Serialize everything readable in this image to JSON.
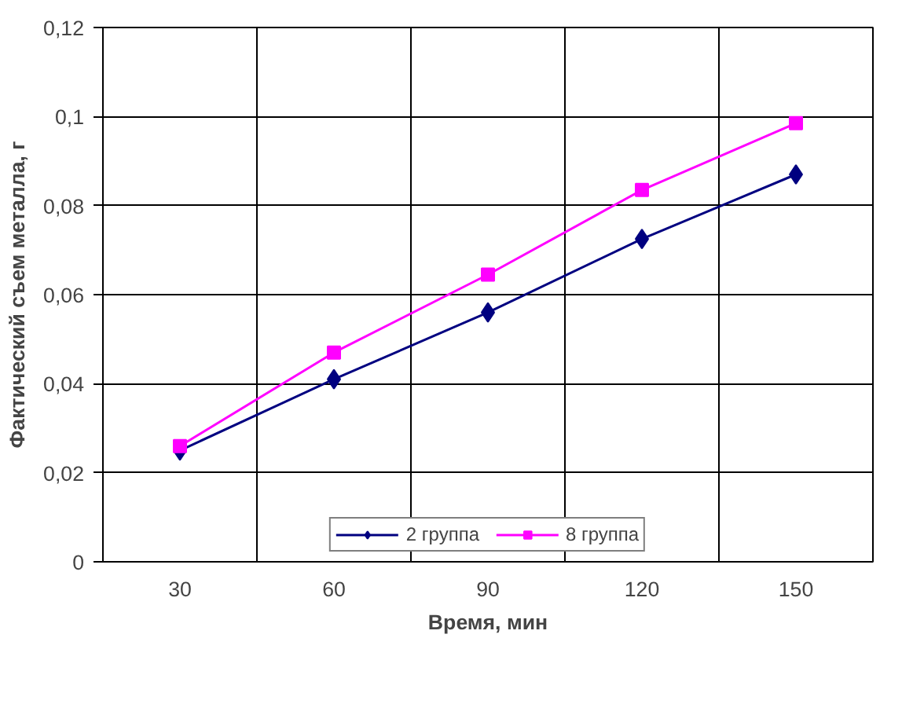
{
  "chart_data": {
    "type": "line",
    "xlabel": "Время, мин",
    "ylabel": "Фактический съем металла, г",
    "categories": [
      "30",
      "60",
      "90",
      "120",
      "150"
    ],
    "series": [
      {
        "name": "2 группа",
        "color": "#000080",
        "marker": "diamond",
        "values": [
          0.025,
          0.041,
          0.056,
          0.0725,
          0.087
        ]
      },
      {
        "name": "8 группа",
        "color": "#ff00ff",
        "marker": "square",
        "values": [
          0.026,
          0.047,
          0.0645,
          0.0835,
          0.0985
        ]
      }
    ],
    "ylim": [
      0,
      0.12
    ],
    "yticks": [
      {
        "value": 0,
        "label": "0"
      },
      {
        "value": 0.02,
        "label": "0,02"
      },
      {
        "value": 0.04,
        "label": "0,04"
      },
      {
        "value": 0.06,
        "label": "0,06"
      },
      {
        "value": 0.08,
        "label": "0,08"
      },
      {
        "value": 0.1,
        "label": "0,1"
      },
      {
        "value": 0.12,
        "label": "0,12"
      }
    ],
    "grid": true,
    "legend": "bottom"
  }
}
